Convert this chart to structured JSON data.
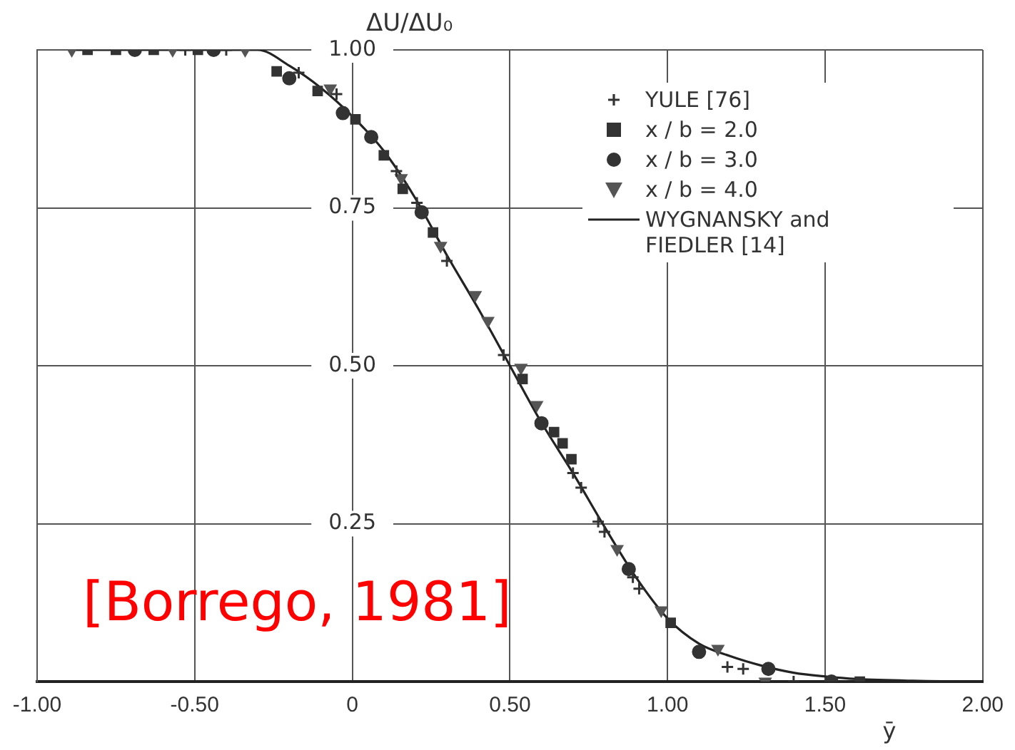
{
  "chart_data": {
    "type": "scatter",
    "ylabel": "ΔU/ΔU₀",
    "xlabel": "ȳ",
    "annotations": [
      "[Borrego, 1981]"
    ],
    "xlim": [
      -1,
      2
    ],
    "ylim": [
      0,
      1
    ],
    "xticks": [
      {
        "value": -1,
        "label": "-1.00"
      },
      {
        "value": -0.5,
        "label": "-0.50"
      },
      0,
      {
        "value": 0.5,
        "label": "0.50"
      },
      {
        "value": 1,
        "label": "1.00"
      },
      {
        "value": 1.5,
        "label": "1.50"
      },
      {
        "value": 2,
        "label": "2.00"
      }
    ],
    "yticks": [
      {
        "value": 0,
        "label": null
      },
      {
        "value": 0.25,
        "label": "0.25"
      },
      {
        "value": 0.5,
        "label": "0.50"
      },
      {
        "value": 0.75,
        "label": "0.75"
      },
      {
        "value": 1,
        "label": "1.00"
      }
    ],
    "grid": true,
    "legend": "top right",
    "series": [
      {
        "name": "YULE [76]",
        "marker": "cross",
        "color": "#333333",
        "x": [
          -0.53,
          -0.4,
          -0.17,
          -0.05,
          0.14,
          0.205,
          0.3,
          0.48,
          0.7,
          0.726,
          0.78,
          0.8,
          0.89,
          0.91,
          1.19,
          1.24,
          1.4
        ],
        "values": [
          1,
          1,
          0.964,
          0.93,
          0.808,
          0.758,
          0.666,
          0.517,
          0.33,
          0.307,
          0.253,
          0.237,
          0.165,
          0.147,
          0.023,
          0.02,
          0
        ]
      },
      {
        "name": "x / b  = 2.0",
        "marker": "square",
        "color": "#333333",
        "x": [
          -0.84,
          -0.75,
          -0.63,
          -0.49,
          -0.24,
          -0.11,
          0.01,
          0.1,
          0.16,
          0.256,
          0.54,
          0.64,
          0.667,
          0.695,
          1.01,
          1.61
        ],
        "values": [
          1,
          1,
          1,
          1,
          0.966,
          0.935,
          0.89,
          0.833,
          0.78,
          0.711,
          0.479,
          0.395,
          0.377,
          0.352,
          0.093,
          0
        ]
      },
      {
        "name": "x / b  = 3.0",
        "marker": "circle",
        "color": "#333333",
        "x": [
          -0.69,
          -0.44,
          -0.2,
          -0.03,
          0.06,
          0.22,
          0.6,
          0.877,
          1.1,
          1.32,
          1.52
        ],
        "values": [
          1,
          1,
          0.955,
          0.9,
          0.862,
          0.743,
          0.409,
          0.178,
          0.047,
          0.02,
          0
        ]
      },
      {
        "name": "x / b  = 4.0",
        "marker": "triangle",
        "color": "#555555",
        "x": [
          -0.89,
          -0.57,
          -0.34,
          -0.07,
          0.155,
          0.28,
          0.39,
          0.43,
          0.535,
          0.585,
          0.84,
          0.98,
          1.16,
          1.31
        ],
        "values": [
          1,
          1,
          1,
          0.939,
          0.797,
          0.69,
          0.612,
          0.571,
          0.497,
          0.438,
          0.21,
          0.113,
          0.052,
          0
        ]
      },
      {
        "name": "WYGNANSKY and FIEDLER [14]",
        "type": "line",
        "marker": "none",
        "line_style": "solid",
        "color": "#222222",
        "x": [
          -0.9,
          -0.3,
          -0.2,
          -0.1,
          0,
          0.1,
          0.2,
          0.3,
          0.4,
          0.5,
          0.6,
          0.7,
          0.8,
          0.9,
          1,
          1.1,
          1.2,
          1.3,
          1.4,
          1.5,
          1.6,
          1.8,
          2
        ],
        "values": [
          1,
          1,
          0.975,
          0.94,
          0.895,
          0.84,
          0.765,
          0.675,
          0.59,
          0.5,
          0.41,
          0.33,
          0.245,
          0.165,
          0.1,
          0.06,
          0.04,
          0.025,
          0.014,
          0.008,
          0.004,
          0.001,
          0
        ]
      }
    ]
  }
}
